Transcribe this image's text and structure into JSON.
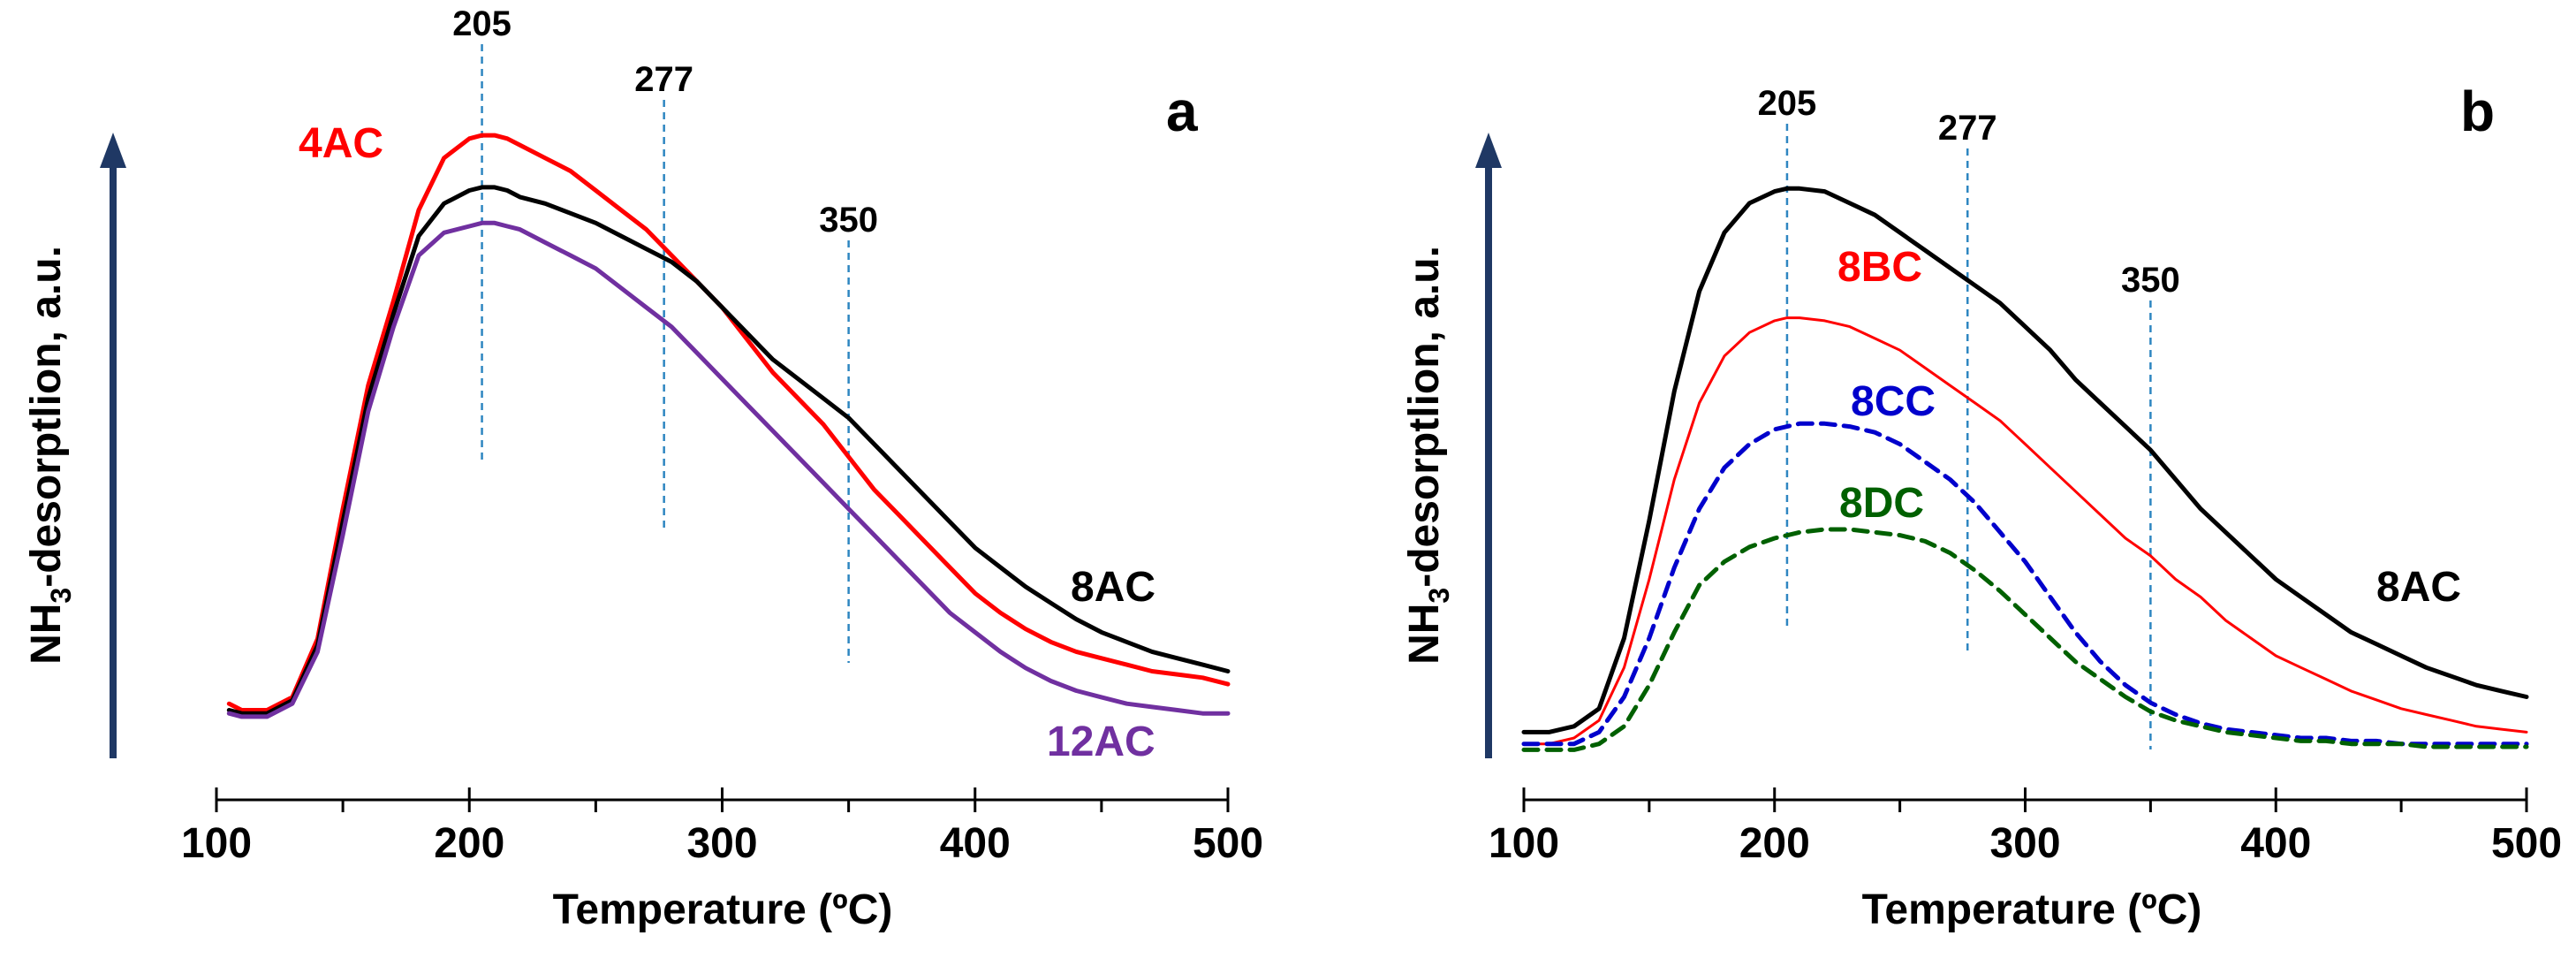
{
  "chart_data": [
    {
      "type": "line",
      "panel": "a",
      "xlabel": "Temperature (ºC)",
      "ylabel_main": "NH",
      "ylabel_sub": "3",
      "ylabel_rest": "-desorptlion, a.u.",
      "xlim": [
        100,
        500
      ],
      "ylim": [
        0,
        1
      ],
      "xticks": [
        100,
        200,
        300,
        400,
        500
      ],
      "reference_lines": [
        {
          "x": 205,
          "label": "205",
          "ymax": 0.84
        },
        {
          "x": 277,
          "label": "277",
          "ymax": 0.73
        },
        {
          "x": 350,
          "label": "350",
          "ymax": 0.62
        }
      ],
      "series": [
        {
          "name": "4AC",
          "color": "#ff0000",
          "dash": false,
          "label_pos": "upper-left",
          "x": [
            105,
            110,
            120,
            130,
            140,
            150,
            160,
            170,
            180,
            190,
            200,
            205,
            210,
            215,
            220,
            230,
            240,
            250,
            260,
            270,
            280,
            290,
            300,
            310,
            320,
            330,
            340,
            350,
            360,
            370,
            380,
            390,
            400,
            410,
            420,
            430,
            440,
            450,
            460,
            470,
            480,
            490,
            500
          ],
          "y": [
            0.08,
            0.07,
            0.07,
            0.09,
            0.18,
            0.38,
            0.57,
            0.7,
            0.84,
            0.92,
            0.95,
            0.955,
            0.955,
            0.95,
            0.94,
            0.92,
            0.9,
            0.87,
            0.84,
            0.81,
            0.77,
            0.73,
            0.69,
            0.64,
            0.59,
            0.55,
            0.51,
            0.46,
            0.41,
            0.37,
            0.33,
            0.29,
            0.25,
            0.22,
            0.195,
            0.175,
            0.16,
            0.15,
            0.14,
            0.13,
            0.125,
            0.12,
            0.11
          ]
        },
        {
          "name": "8AC",
          "color": "#000000",
          "dash": false,
          "label_pos": "right",
          "x": [
            105,
            110,
            120,
            130,
            140,
            150,
            160,
            170,
            180,
            190,
            200,
            205,
            210,
            215,
            220,
            230,
            240,
            250,
            260,
            270,
            280,
            290,
            300,
            310,
            320,
            330,
            340,
            350,
            360,
            370,
            380,
            390,
            400,
            410,
            420,
            430,
            440,
            450,
            460,
            470,
            480,
            490,
            500
          ],
          "y": [
            0.07,
            0.065,
            0.065,
            0.085,
            0.17,
            0.36,
            0.55,
            0.68,
            0.8,
            0.85,
            0.87,
            0.875,
            0.875,
            0.87,
            0.86,
            0.85,
            0.835,
            0.82,
            0.8,
            0.78,
            0.76,
            0.73,
            0.69,
            0.65,
            0.61,
            0.58,
            0.55,
            0.52,
            0.48,
            0.44,
            0.4,
            0.36,
            0.32,
            0.29,
            0.26,
            0.235,
            0.21,
            0.19,
            0.175,
            0.16,
            0.15,
            0.14,
            0.13
          ]
        },
        {
          "name": "12AC",
          "color": "#7030a0",
          "dash": false,
          "label_pos": "lower-right",
          "x": [
            105,
            110,
            120,
            130,
            140,
            150,
            160,
            170,
            180,
            190,
            200,
            205,
            210,
            215,
            220,
            230,
            240,
            250,
            260,
            270,
            280,
            290,
            300,
            310,
            320,
            330,
            340,
            350,
            360,
            370,
            380,
            390,
            400,
            410,
            420,
            430,
            440,
            450,
            460,
            470,
            480,
            490,
            500
          ],
          "y": [
            0.065,
            0.06,
            0.06,
            0.08,
            0.16,
            0.34,
            0.53,
            0.66,
            0.77,
            0.805,
            0.815,
            0.82,
            0.82,
            0.815,
            0.81,
            0.79,
            0.77,
            0.75,
            0.72,
            0.69,
            0.66,
            0.62,
            0.58,
            0.54,
            0.5,
            0.46,
            0.42,
            0.38,
            0.34,
            0.3,
            0.26,
            0.22,
            0.19,
            0.16,
            0.135,
            0.115,
            0.1,
            0.09,
            0.08,
            0.075,
            0.07,
            0.065,
            0.065
          ]
        }
      ]
    },
    {
      "type": "line",
      "panel": "b",
      "xlabel": "Temperature (ºC)",
      "ylabel_main": "NH",
      "ylabel_sub": "3",
      "ylabel_rest": "-desorptlion, a.u.",
      "xlim": [
        100,
        500
      ],
      "ylim": [
        0,
        1
      ],
      "xticks": [
        100,
        200,
        300,
        400,
        500
      ],
      "reference_lines": [
        {
          "x": 205,
          "label": "205",
          "ymax": 0.92
        },
        {
          "x": 277,
          "label": "277",
          "ymax": 0.84
        },
        {
          "x": 350,
          "label": "350",
          "ymax": 0.74
        }
      ],
      "series": [
        {
          "name": "8AC",
          "color": "#000000",
          "dash": false,
          "label_pos": "right",
          "x": [
            100,
            110,
            120,
            130,
            140,
            150,
            160,
            170,
            180,
            190,
            200,
            205,
            210,
            220,
            230,
            240,
            250,
            260,
            270,
            280,
            290,
            300,
            310,
            320,
            330,
            340,
            350,
            360,
            370,
            380,
            390,
            400,
            410,
            420,
            430,
            440,
            450,
            460,
            470,
            480,
            490,
            500
          ],
          "y": [
            0.04,
            0.04,
            0.05,
            0.08,
            0.2,
            0.4,
            0.62,
            0.79,
            0.89,
            0.94,
            0.96,
            0.965,
            0.965,
            0.96,
            0.94,
            0.92,
            0.89,
            0.86,
            0.83,
            0.8,
            0.77,
            0.73,
            0.69,
            0.64,
            0.6,
            0.56,
            0.52,
            0.47,
            0.42,
            0.38,
            0.34,
            0.3,
            0.27,
            0.24,
            0.21,
            0.19,
            0.17,
            0.15,
            0.135,
            0.12,
            0.11,
            0.1
          ]
        },
        {
          "name": "8BC",
          "color": "#ff0000",
          "dash": false,
          "label_pos": "upper",
          "x": [
            100,
            110,
            120,
            130,
            140,
            150,
            160,
            170,
            180,
            190,
            200,
            205,
            210,
            220,
            230,
            240,
            250,
            260,
            270,
            280,
            290,
            300,
            310,
            320,
            330,
            340,
            350,
            360,
            370,
            380,
            390,
            400,
            410,
            420,
            430,
            440,
            450,
            460,
            470,
            480,
            490,
            500
          ],
          "y": [
            0.02,
            0.02,
            0.03,
            0.06,
            0.15,
            0.3,
            0.47,
            0.6,
            0.68,
            0.72,
            0.74,
            0.745,
            0.745,
            0.74,
            0.73,
            0.71,
            0.69,
            0.66,
            0.63,
            0.6,
            0.57,
            0.53,
            0.49,
            0.45,
            0.41,
            0.37,
            0.34,
            0.3,
            0.27,
            0.23,
            0.2,
            0.17,
            0.15,
            0.13,
            0.11,
            0.095,
            0.08,
            0.07,
            0.06,
            0.05,
            0.045,
            0.04
          ]
        },
        {
          "name": "8CC",
          "color": "#0000cc",
          "dash": true,
          "label_pos": "upper",
          "x": [
            100,
            110,
            120,
            130,
            140,
            150,
            160,
            170,
            180,
            190,
            200,
            210,
            220,
            230,
            240,
            250,
            260,
            270,
            280,
            290,
            300,
            310,
            320,
            330,
            340,
            350,
            360,
            370,
            380,
            390,
            400,
            410,
            420,
            430,
            440,
            450,
            460,
            470,
            480,
            490,
            500
          ],
          "y": [
            0.02,
            0.02,
            0.02,
            0.04,
            0.1,
            0.2,
            0.32,
            0.42,
            0.49,
            0.53,
            0.555,
            0.565,
            0.565,
            0.56,
            0.55,
            0.53,
            0.5,
            0.47,
            0.43,
            0.38,
            0.33,
            0.27,
            0.21,
            0.16,
            0.12,
            0.09,
            0.07,
            0.055,
            0.045,
            0.04,
            0.035,
            0.03,
            0.03,
            0.025,
            0.025,
            0.02,
            0.02,
            0.02,
            0.02,
            0.02,
            0.02
          ]
        },
        {
          "name": "8DC",
          "color": "#006000",
          "dash": true,
          "label_pos": "upper",
          "x": [
            100,
            110,
            120,
            130,
            140,
            150,
            160,
            170,
            180,
            190,
            200,
            210,
            220,
            230,
            240,
            250,
            260,
            270,
            280,
            290,
            300,
            310,
            320,
            330,
            340,
            350,
            360,
            370,
            380,
            390,
            400,
            410,
            420,
            430,
            440,
            450,
            460,
            470,
            480,
            490,
            500
          ],
          "y": [
            0.01,
            0.01,
            0.01,
            0.02,
            0.05,
            0.12,
            0.21,
            0.29,
            0.33,
            0.355,
            0.37,
            0.38,
            0.385,
            0.385,
            0.38,
            0.375,
            0.365,
            0.345,
            0.315,
            0.28,
            0.24,
            0.2,
            0.16,
            0.13,
            0.1,
            0.075,
            0.06,
            0.05,
            0.04,
            0.035,
            0.03,
            0.025,
            0.025,
            0.02,
            0.02,
            0.02,
            0.015,
            0.015,
            0.015,
            0.015,
            0.015
          ]
        }
      ]
    }
  ]
}
